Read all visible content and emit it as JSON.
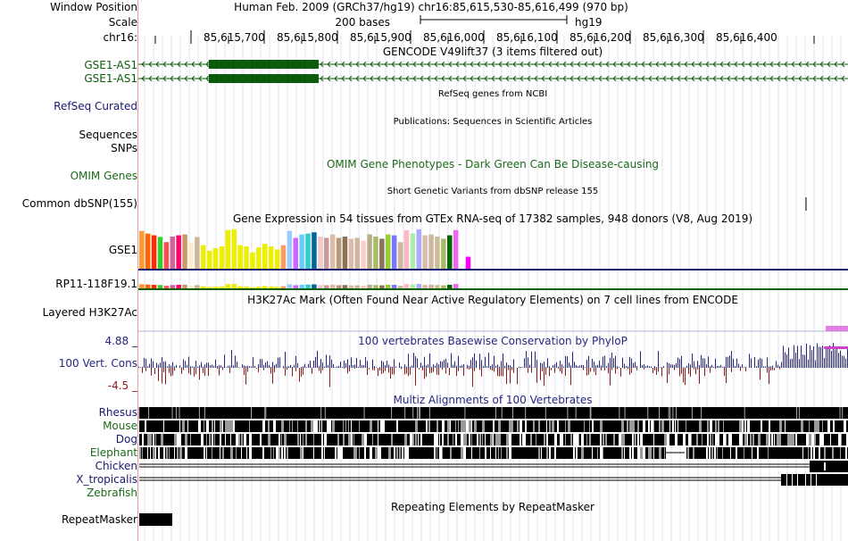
{
  "colors": {
    "gencode": "#0a5c0a",
    "refseq": "#191970",
    "omim": "#1a6a1a",
    "cons_pos": "#262680",
    "cons_neg": "#8b1a1a",
    "multiz": "#262680",
    "h3k27ac": "#8080c0"
  },
  "labels": {
    "window_position": "Window Position",
    "scale": "Scale",
    "chrom": "chr16:",
    "gencode1": "GSE1-AS1",
    "gencode2": "GSE1-AS1",
    "refseq": "RefSeq Curated",
    "sequences": "Sequences",
    "snps": "SNPs",
    "omim": "OMIM Genes",
    "dbsnp": "Common dbSNP(155)",
    "gse1": "GSE1",
    "rp11": "RP11-118F19.1",
    "h3k27ac": "Layered H3K27Ac",
    "cons_max": "4.88 _",
    "cons": "100 Vert. Cons",
    "cons_min": "-4.5 _",
    "species": [
      "Rhesus",
      "Mouse",
      "Dog",
      "Elephant",
      "Chicken",
      "X_tropicalis",
      "Zebrafish"
    ],
    "repeatmasker": "RepeatMasker"
  },
  "header": {
    "assembly": "Human Feb. 2009 (GRCh37/hg19)   chr16:85,615,530-85,616,499 (970 bp)",
    "scale_bases": "200 bases",
    "scale_db": "hg19",
    "ticks": [
      "85,615,700",
      "85,615,800",
      "85,615,900",
      "85,616,000",
      "85,616,100",
      "85,616,200",
      "85,616,300",
      "85,616,400"
    ]
  },
  "tracks": {
    "gencode_title": "GENCODE V49lift37 (3 items filtered out)",
    "refseq_title": "RefSeq genes from NCBI",
    "publications_title": "Publications: Sequences in Scientific Articles",
    "omim_title": "OMIM Gene Phenotypes - Dark Green Can Be Disease-causing",
    "dbsnp_title": "Short Genetic Variants from dbSNP release 155",
    "gtex_title": "Gene Expression in 54 tissues from GTEx RNA-seq of 17382 samples, 948 donors (V8, Aug 2019)",
    "h3k27ac_title": "H3K27Ac Mark (Often Found Near Active Regulatory Elements) on 7 cell lines from ENCODE",
    "cons_title": "100 vertebrates Basewise Conservation by PhyloP",
    "multiz_title": "Multiz Alignments of 100 Vertebrates",
    "repeat_title": "Repeating Elements by RepeatMasker"
  },
  "gtex": {
    "tissues": 54,
    "colors": [
      "#ff9933",
      "#ff6600",
      "#ff2a00",
      "#33cc33",
      "#ff4d4d",
      "#cc6699",
      "#ff0066",
      "#cc9966",
      "#ffeecc",
      "#cdb79e",
      "#eeee00",
      "#eeee00",
      "#eeee00",
      "#eeee00",
      "#eeee00",
      "#eeee00",
      "#eeee00",
      "#eeee00",
      "#eeee00",
      "#eeee00",
      "#eeee00",
      "#eeee00",
      "#eeee00",
      "#ff9966",
      "#99ccff",
      "#cc66ff",
      "#66ccff",
      "#33cccc",
      "#006699",
      "#eecccc",
      "#cc9999",
      "#ddbbaa",
      "#bb9977",
      "#8b7355",
      "#ddbbaa",
      "#cdb79e",
      "#ffcccc",
      "#bbaa88",
      "#aabb66",
      "#8b7355",
      "#9acd32",
      "#7777ff",
      "#cdb79e",
      "#ffb6c1",
      "#aaeeaa",
      "#aaaaff",
      "#ddbbaa",
      "#cdb79e",
      "#ccbb99",
      "#aabb66",
      "#006600",
      "#ee66ee",
      "#aaaaaa",
      "#ff00ff"
    ],
    "values": [
      0.88,
      0.82,
      0.78,
      0.74,
      0.62,
      0.75,
      0.78,
      0.8,
      0.62,
      0.74,
      0.55,
      0.42,
      0.48,
      0.52,
      0.9,
      0.92,
      0.55,
      0.52,
      0.38,
      0.5,
      0.58,
      0.52,
      0.45,
      0.55,
      0.88,
      0.72,
      0.8,
      0.82,
      0.85,
      0.75,
      0.72,
      0.8,
      0.72,
      0.75,
      0.7,
      0.72,
      0.65,
      0.8,
      0.75,
      0.7,
      0.8,
      0.78,
      0.62,
      0.9,
      0.82,
      0.92,
      0.78,
      0.8,
      0.75,
      0.7,
      0.78,
      0.9,
      0.0,
      0.28
    ]
  }
}
